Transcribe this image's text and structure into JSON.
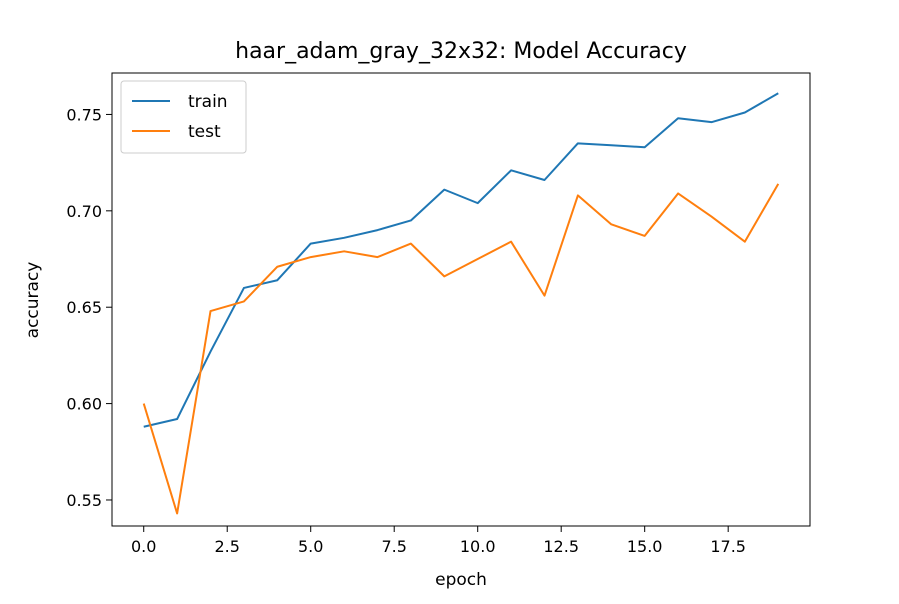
{
  "chart_data": {
    "type": "line",
    "title": "haar_adam_gray_32x32: Model Accuracy",
    "xlabel": "epoch",
    "ylabel": "accuracy",
    "xlim": [
      -0.95,
      19.95
    ],
    "ylim": [
      0.5365,
      0.7715
    ],
    "xticks": [
      0.0,
      2.5,
      5.0,
      7.5,
      10.0,
      12.5,
      15.0,
      17.5
    ],
    "xtick_labels": [
      "0.0",
      "2.5",
      "5.0",
      "7.5",
      "10.0",
      "12.5",
      "15.0",
      "17.5"
    ],
    "yticks": [
      0.55,
      0.6,
      0.65,
      0.7,
      0.75
    ],
    "ytick_labels": [
      "0.55",
      "0.60",
      "0.65",
      "0.70",
      "0.75"
    ],
    "grid": false,
    "legend_position": "upper-left",
    "x": [
      0,
      1,
      2,
      3,
      4,
      5,
      6,
      7,
      8,
      9,
      10,
      11,
      12,
      13,
      14,
      15,
      16,
      17,
      18,
      19
    ],
    "series": [
      {
        "name": "train",
        "color": "#1f77b4",
        "values": [
          0.588,
          0.592,
          0.627,
          0.66,
          0.664,
          0.683,
          0.686,
          0.69,
          0.695,
          0.711,
          0.704,
          0.721,
          0.716,
          0.735,
          0.734,
          0.733,
          0.748,
          0.746,
          0.751,
          0.761
        ]
      },
      {
        "name": "test",
        "color": "#ff7f0e",
        "values": [
          0.6,
          0.543,
          0.648,
          0.653,
          0.671,
          0.676,
          0.679,
          0.676,
          0.683,
          0.666,
          0.675,
          0.684,
          0.656,
          0.708,
          0.693,
          0.687,
          0.709,
          0.697,
          0.684,
          0.714
        ]
      }
    ]
  }
}
